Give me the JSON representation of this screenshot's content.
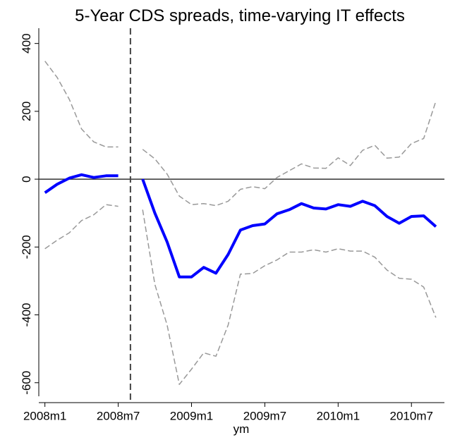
{
  "chart_data": {
    "type": "line",
    "title": "5-Year CDS spreads, time-varying IT effects",
    "xlabel": "ym",
    "x": [
      576,
      577,
      578,
      579,
      580,
      581,
      582,
      583,
      584,
      585,
      586,
      587,
      588,
      589,
      590,
      591,
      592,
      593,
      594,
      595,
      596,
      597,
      598,
      599,
      600,
      601,
      602,
      603,
      604,
      605,
      606,
      607,
      608
    ],
    "series": [
      {
        "color": "#999999",
        "dashed": true,
        "width": 1.5,
        "values": [
          348,
          300,
          235,
          148,
          110,
          95,
          95,
          null,
          88,
          60,
          15,
          -50,
          -75,
          -72,
          -78,
          -65,
          -30,
          -22,
          -28,
          5,
          25,
          45,
          33,
          32,
          63,
          40,
          85,
          100,
          62,
          65,
          105,
          120,
          230
        ]
      },
      {
        "color": "#999999",
        "dashed": true,
        "width": 1.5,
        "values": [
          -205,
          -180,
          -158,
          -122,
          -105,
          -75,
          -80,
          null,
          -90,
          -310,
          -430,
          -605,
          -560,
          -512,
          -522,
          -430,
          -280,
          -278,
          -255,
          -238,
          -215,
          -215,
          -208,
          -215,
          -205,
          -212,
          -212,
          -230,
          -268,
          -292,
          -295,
          -318,
          -408
        ]
      },
      {
        "color": "#0000ff",
        "dashed": false,
        "width": 4,
        "values": [
          -40,
          -15,
          3,
          13,
          5,
          10,
          10,
          null,
          0,
          -100,
          -185,
          -288,
          -288,
          -260,
          -277,
          -222,
          -150,
          -137,
          -132,
          -102,
          -90,
          -72,
          -85,
          -88,
          -75,
          -80,
          -65,
          -78,
          -110,
          -130,
          -110,
          -108,
          -140
        ]
      }
    ],
    "xlim": [
      575.5,
      608.7
    ],
    "xticks": [
      {
        "value": 576,
        "label": "2008m1"
      },
      {
        "value": 582,
        "label": "2008m7"
      },
      {
        "value": 588,
        "label": "2009m1"
      },
      {
        "value": 594,
        "label": "2009m7"
      },
      {
        "value": 600,
        "label": "2010m1"
      },
      {
        "value": 606,
        "label": "2010m7"
      }
    ],
    "ylim": [
      -640,
      445
    ],
    "yticks": [
      -600,
      -400,
      -200,
      0,
      200,
      400
    ],
    "hline": 0,
    "vline": 583
  }
}
